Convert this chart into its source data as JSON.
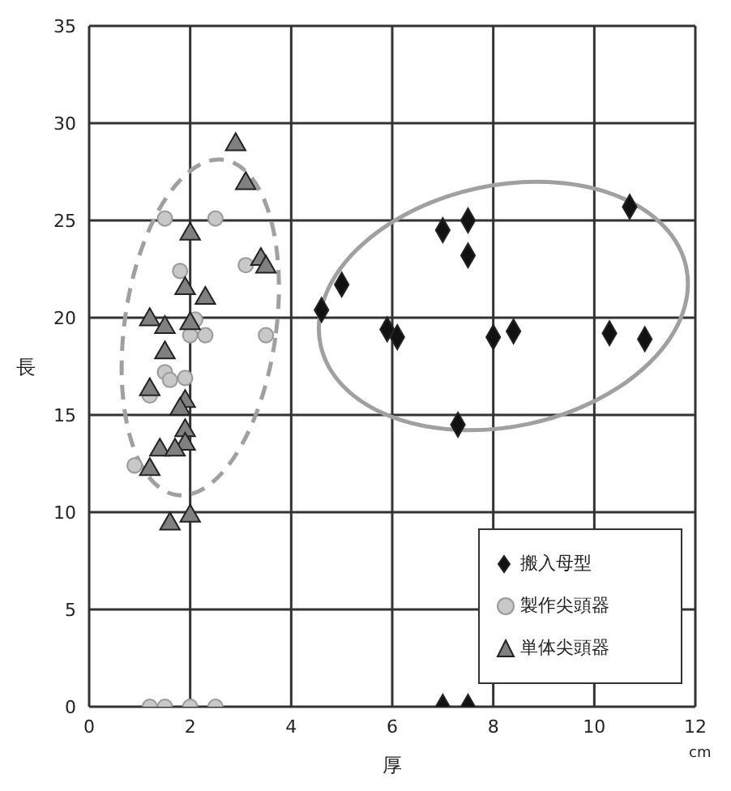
{
  "chart_data": {
    "type": "scatter",
    "xlabel": "厚",
    "ylabel": "長",
    "annotations": [
      "cm"
    ],
    "xlim": [
      0,
      12
    ],
    "xticks": [
      0,
      2,
      4,
      6,
      8,
      10,
      12
    ],
    "ylim": [
      0,
      35
    ],
    "yticks": [
      0,
      5,
      10,
      15,
      20,
      25,
      30,
      35
    ],
    "grid": true,
    "legend": "bottom right",
    "series": [
      {
        "name": "搬入母型",
        "color": "#111111",
        "marker": "diamond",
        "x": [
          10.7,
          7.0,
          7.5,
          7.5,
          5.0,
          4.6,
          5.9,
          6.1,
          8.0,
          8.4,
          10.3,
          11.0,
          7.3,
          7.0,
          7.5
        ],
        "values": [
          25.7,
          24.5,
          25.0,
          23.2,
          21.7,
          20.4,
          19.4,
          19.0,
          19.0,
          19.3,
          19.2,
          18.9,
          14.5,
          0,
          0
        ]
      },
      {
        "name": "製作尖頭器",
        "color": "#c8c8c8",
        "marker": "circle",
        "x": [
          1.5,
          2.5,
          1.8,
          3.1,
          2.1,
          2.0,
          2.3,
          3.5,
          1.5,
          1.6,
          1.9,
          1.2,
          0.9,
          1.2,
          1.5,
          2.0,
          2.5
        ],
        "values": [
          25.1,
          25.1,
          22.4,
          22.7,
          19.9,
          19.1,
          19.1,
          19.1,
          17.2,
          16.8,
          16.9,
          16.0,
          12.4,
          0,
          0,
          0,
          0
        ]
      },
      {
        "name": "単体尖頭器",
        "color": "#808080",
        "marker": "triangle",
        "x": [
          2.9,
          3.1,
          2.0,
          3.4,
          3.5,
          1.9,
          2.3,
          1.2,
          1.5,
          2.0,
          1.5,
          1.2,
          1.9,
          1.8,
          1.9,
          1.9,
          1.4,
          1.7,
          1.2,
          1.6,
          2.0
        ],
        "values": [
          28.9,
          26.9,
          24.3,
          23.0,
          22.6,
          21.5,
          21.0,
          19.9,
          19.5,
          19.7,
          18.2,
          16.3,
          15.7,
          15.3,
          14.2,
          13.5,
          13.2,
          13.2,
          12.2,
          9.4,
          9.8
        ]
      }
    ]
  }
}
